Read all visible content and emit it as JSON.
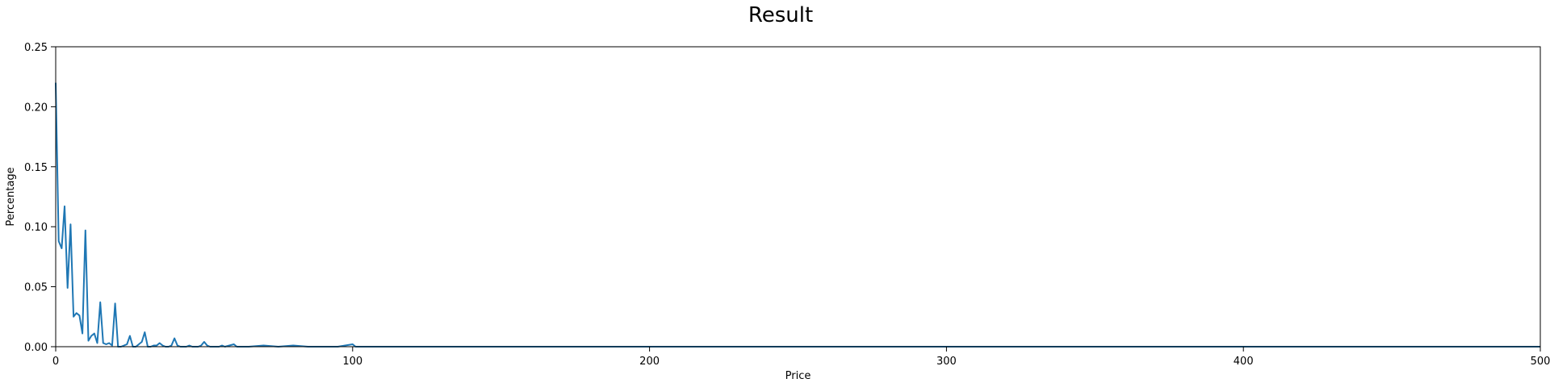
{
  "chart_data": {
    "type": "line",
    "title": "Result",
    "xlabel": "Price",
    "ylabel": "Percentage",
    "xlim": [
      0,
      500
    ],
    "ylim": [
      0,
      0.25
    ],
    "x_ticks": [
      0,
      100,
      200,
      300,
      400,
      500
    ],
    "y_ticks": [
      0.0,
      0.05,
      0.1,
      0.15,
      0.2,
      0.25
    ],
    "x_tick_labels": [
      "0",
      "100",
      "200",
      "300",
      "400",
      "500"
    ],
    "y_tick_labels": [
      "0.00",
      "0.05",
      "0.10",
      "0.15",
      "0.20",
      "0.25"
    ],
    "grid": false,
    "series": [
      {
        "color": "#1f77b4",
        "x": [
          0,
          1,
          2,
          3,
          4,
          5,
          6,
          7,
          8,
          9,
          10,
          11,
          12,
          13,
          14,
          15,
          16,
          17,
          18,
          19,
          20,
          21,
          22,
          23,
          24,
          25,
          26,
          27,
          28,
          29,
          30,
          31,
          32,
          33,
          34,
          35,
          36,
          37,
          38,
          39,
          40,
          41,
          42,
          43,
          44,
          45,
          46,
          47,
          48,
          49,
          50,
          51,
          52,
          55,
          56,
          57,
          60,
          61,
          65,
          70,
          75,
          80,
          85,
          90,
          95,
          100,
          101,
          110,
          120,
          150,
          200,
          250,
          300,
          350,
          400,
          450,
          500
        ],
        "y": [
          0.22,
          0.088,
          0.082,
          0.117,
          0.049,
          0.102,
          0.025,
          0.028,
          0.026,
          0.011,
          0.097,
          0.005,
          0.009,
          0.011,
          0.003,
          0.037,
          0.003,
          0.002,
          0.003,
          0.001,
          0.036,
          0.0,
          0.0,
          0.001,
          0.002,
          0.009,
          0.0,
          0.0,
          0.002,
          0.004,
          0.012,
          0.0,
          0.0,
          0.001,
          0.001,
          0.003,
          0.001,
          0.0,
          0.0,
          0.001,
          0.007,
          0.001,
          0.0,
          0.0,
          0.0,
          0.001,
          0.0,
          0.0,
          0.0,
          0.001,
          0.004,
          0.001,
          0.0,
          0.0,
          0.001,
          0.0,
          0.002,
          0.0,
          0.0,
          0.001,
          0.0,
          0.001,
          0.0,
          0.0,
          0.0,
          0.002,
          0.0,
          0.0,
          0.0,
          0.0,
          0.0,
          0.0,
          0.0,
          0.0,
          0.0,
          0.0,
          0.0
        ]
      }
    ]
  }
}
